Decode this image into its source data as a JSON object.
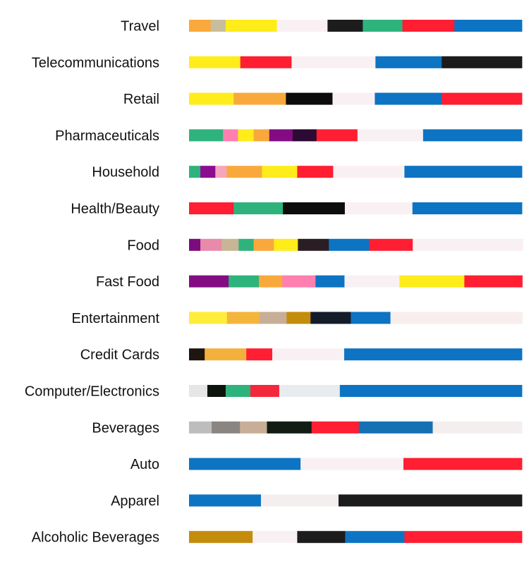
{
  "chart_data": {
    "type": "bar",
    "title": "",
    "xlabel": "",
    "ylabel": "",
    "stacked": true,
    "xlim": [
      0,
      100
    ],
    "grid": false,
    "legend": "none",
    "categories": [
      "Travel",
      "Telecommunications",
      "Retail",
      "Pharmaceuticals",
      "Household",
      "Health/Beauty",
      "Food",
      "Fast Food",
      "Entertainment",
      "Credit Cards",
      "Computer/Electronics",
      "Beverages",
      "Auto",
      "Apparel",
      "Alcoholic Beverages"
    ],
    "rows": [
      {
        "segments": [
          {
            "color": "#F9A93C",
            "value": 6.5
          },
          {
            "color": "#C8BE9C",
            "value": 4.5
          },
          {
            "color": "#FFEC1B",
            "value": 15.4
          },
          {
            "color": "#F9F0F4",
            "value": 15.2
          },
          {
            "color": "#1C1C1C",
            "value": 10.6
          },
          {
            "color": "#2EB37C",
            "value": 11.9
          },
          {
            "color": "#FF1E32",
            "value": 15.6
          },
          {
            "color": "#0C74C3",
            "value": 20.3
          }
        ]
      },
      {
        "segments": [
          {
            "color": "#FFEC1B",
            "value": 15.4
          },
          {
            "color": "#FF1E32",
            "value": 15.4
          },
          {
            "color": "#F9F0F4",
            "value": 25.2
          },
          {
            "color": "#0C74C3",
            "value": 19.9
          },
          {
            "color": "#1C1C1C",
            "value": 24.1
          }
        ]
      },
      {
        "segments": [
          {
            "color": "#FFEC1B",
            "value": 13.4
          },
          {
            "color": "#F9A93C",
            "value": 15.7
          },
          {
            "color": "#0C0C0C",
            "value": 14.0
          },
          {
            "color": "#F9F0F4",
            "value": 12.7
          },
          {
            "color": "#0C74C3",
            "value": 20.1
          },
          {
            "color": "#FF1E32",
            "value": 24.1
          }
        ]
      },
      {
        "segments": [
          {
            "color": "#2EB37C",
            "value": 10.2
          },
          {
            "color": "#FF7FAE",
            "value": 4.5
          },
          {
            "color": "#FFEC1B",
            "value": 4.7
          },
          {
            "color": "#F9A93C",
            "value": 4.7
          },
          {
            "color": "#830C83",
            "value": 7.0
          },
          {
            "color": "#2D0A33",
            "value": 7.2
          },
          {
            "color": "#FF1E32",
            "value": 12.3
          },
          {
            "color": "#F9F0F4",
            "value": 19.7
          },
          {
            "color": "#0C74C3",
            "value": 29.7
          }
        ]
      },
      {
        "segments": [
          {
            "color": "#2EB37C",
            "value": 3.4
          },
          {
            "color": "#8C0C91",
            "value": 4.5
          },
          {
            "color": "#F4A6BC",
            "value": 3.4
          },
          {
            "color": "#F9A93C",
            "value": 10.6
          },
          {
            "color": "#FFEC1B",
            "value": 10.6
          },
          {
            "color": "#FF1E32",
            "value": 10.8
          },
          {
            "color": "#F9F0F4",
            "value": 21.4
          },
          {
            "color": "#0C74C3",
            "value": 35.3
          }
        ]
      },
      {
        "segments": [
          {
            "color": "#FF1E32",
            "value": 13.4
          },
          {
            "color": "#2EB37C",
            "value": 14.8
          },
          {
            "color": "#0C0C0C",
            "value": 18.6
          },
          {
            "color": "#F9F0F4",
            "value": 20.3
          },
          {
            "color": "#0C74C3",
            "value": 32.9
          }
        ]
      },
      {
        "segments": [
          {
            "color": "#7A0C7E",
            "value": 3.4
          },
          {
            "color": "#E88AAA",
            "value": 6.4
          },
          {
            "color": "#C8B596",
            "value": 5.1
          },
          {
            "color": "#2EB37C",
            "value": 4.5
          },
          {
            "color": "#F9A93C",
            "value": 6.1
          },
          {
            "color": "#FFEC1B",
            "value": 7.2
          },
          {
            "color": "#2A1E24",
            "value": 9.3
          },
          {
            "color": "#0C74C3",
            "value": 12.1
          },
          {
            "color": "#FF1E32",
            "value": 13.1
          },
          {
            "color": "#F9F0F4",
            "value": 33.1
          }
        ]
      },
      {
        "segments": [
          {
            "color": "#830C83",
            "value": 11.9
          },
          {
            "color": "#2EB37C",
            "value": 9.1
          },
          {
            "color": "#F9A93C",
            "value": 7.0
          },
          {
            "color": "#FF7FAE",
            "value": 10.0
          },
          {
            "color": "#0C74C3",
            "value": 8.7
          },
          {
            "color": "#F9F0F4",
            "value": 16.5
          },
          {
            "color": "#FFEC1B",
            "value": 19.5
          },
          {
            "color": "#FF1E32",
            "value": 17.4
          }
        ]
      },
      {
        "segments": [
          {
            "color": "#FFEC3C",
            "value": 11.4
          },
          {
            "color": "#F4B53C",
            "value": 9.8
          },
          {
            "color": "#C8AE96",
            "value": 8.1
          },
          {
            "color": "#C48C0C",
            "value": 7.2
          },
          {
            "color": "#141C2A",
            "value": 12.1
          },
          {
            "color": "#0C74C3",
            "value": 11.9
          },
          {
            "color": "#F9EEEE",
            "value": 39.6
          }
        ]
      },
      {
        "segments": [
          {
            "color": "#1E1410",
            "value": 4.7
          },
          {
            "color": "#F4B03C",
            "value": 12.5
          },
          {
            "color": "#FF1E32",
            "value": 7.8
          },
          {
            "color": "#F9F0F4",
            "value": 21.6
          },
          {
            "color": "#0C74C3",
            "value": 53.4
          }
        ]
      },
      {
        "segments": [
          {
            "color": "#E6E6E6",
            "value": 5.5
          },
          {
            "color": "#0C140E",
            "value": 5.5
          },
          {
            "color": "#2EB37C",
            "value": 7.4
          },
          {
            "color": "#F4283C",
            "value": 8.7
          },
          {
            "color": "#E8ECEF",
            "value": 18.2
          },
          {
            "color": "#0C74C3",
            "value": 54.7
          }
        ]
      },
      {
        "segments": [
          {
            "color": "#BDBDBD",
            "value": 6.8
          },
          {
            "color": "#8A8581",
            "value": 8.5
          },
          {
            "color": "#C8AE96",
            "value": 8.1
          },
          {
            "color": "#121C14",
            "value": 13.4
          },
          {
            "color": "#FF1E32",
            "value": 14.2
          },
          {
            "color": "#1670B4",
            "value": 22.2
          },
          {
            "color": "#F4EEEE",
            "value": 26.8
          }
        ]
      },
      {
        "segments": [
          {
            "color": "#0C74C3",
            "value": 33.5
          },
          {
            "color": "#F9F0F4",
            "value": 30.9
          },
          {
            "color": "#FF1E32",
            "value": 35.6
          }
        ]
      },
      {
        "segments": [
          {
            "color": "#0C74C3",
            "value": 21.6
          },
          {
            "color": "#F4EEEE",
            "value": 23.3
          },
          {
            "color": "#1C1C1C",
            "value": 55.1
          }
        ]
      },
      {
        "segments": [
          {
            "color": "#C48C0C",
            "value": 19.1
          },
          {
            "color": "#F9F0F4",
            "value": 13.4
          },
          {
            "color": "#1C1C1C",
            "value": 14.4
          },
          {
            "color": "#0C74C3",
            "value": 17.8
          },
          {
            "color": "#FF1E32",
            "value": 35.3
          }
        ]
      }
    ]
  }
}
